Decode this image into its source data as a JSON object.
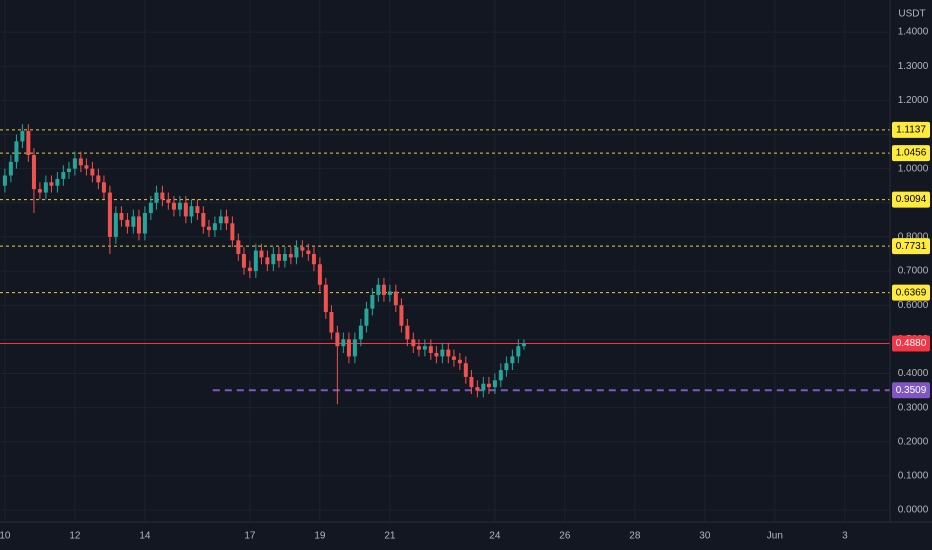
{
  "chart_data": {
    "type": "candlestick",
    "y_axis_label": "USDT",
    "up_color": "#26a69a",
    "down_color": "#ef5350",
    "grid": true,
    "x": [
      10,
      10.17,
      10.33,
      10.5,
      10.67,
      10.83,
      11,
      11.17,
      11.33,
      11.5,
      11.67,
      11.83,
      12,
      12.17,
      12.33,
      12.5,
      12.67,
      12.83,
      13,
      13.17,
      13.33,
      13.5,
      13.67,
      13.83,
      14,
      14.17,
      14.33,
      14.5,
      14.67,
      14.83,
      15,
      15.17,
      15.33,
      15.5,
      15.67,
      15.83,
      16,
      16.17,
      16.33,
      16.5,
      16.67,
      16.83,
      17,
      17.17,
      17.33,
      17.5,
      17.67,
      17.83,
      18,
      18.17,
      18.33,
      18.5,
      18.67,
      18.83,
      19,
      19.17,
      19.33,
      19.5,
      19.67,
      19.83,
      20,
      20.17,
      20.33,
      20.5,
      20.67,
      20.83,
      21,
      21.17,
      21.33,
      21.5,
      21.67,
      21.83,
      22,
      22.17,
      22.33,
      22.5,
      22.67,
      22.83,
      23,
      23.17,
      23.33,
      23.5,
      23.67,
      23.83,
      24,
      24.17,
      24.33,
      24.5,
      24.67,
      24.83
    ],
    "open": [
      0.95,
      0.98,
      1.02,
      1.08,
      1.11,
      1.04,
      0.94,
      0.93,
      0.96,
      0.95,
      0.97,
      0.99,
      1.0,
      1.03,
      1.01,
      1.0,
      0.98,
      0.96,
      0.93,
      0.8,
      0.87,
      0.85,
      0.83,
      0.86,
      0.81,
      0.87,
      0.9,
      0.93,
      0.91,
      0.9,
      0.88,
      0.9,
      0.86,
      0.89,
      0.87,
      0.83,
      0.82,
      0.84,
      0.86,
      0.84,
      0.79,
      0.75,
      0.71,
      0.7,
      0.76,
      0.74,
      0.72,
      0.75,
      0.73,
      0.75,
      0.74,
      0.77,
      0.76,
      0.75,
      0.72,
      0.66,
      0.58,
      0.52,
      0.48,
      0.5,
      0.45,
      0.5,
      0.54,
      0.59,
      0.63,
      0.66,
      0.63,
      0.64,
      0.6,
      0.54,
      0.5,
      0.48,
      0.47,
      0.48,
      0.46,
      0.45,
      0.47,
      0.45,
      0.44,
      0.43,
      0.39,
      0.36,
      0.35,
      0.37,
      0.36,
      0.38,
      0.41,
      0.43,
      0.45,
      0.48
    ],
    "high": [
      1.0,
      1.04,
      1.1,
      1.13,
      1.13,
      1.06,
      0.96,
      0.98,
      0.98,
      0.99,
      1.01,
      1.02,
      1.05,
      1.05,
      1.03,
      1.02,
      1.0,
      0.98,
      0.95,
      0.89,
      0.89,
      0.87,
      0.88,
      0.88,
      0.89,
      0.92,
      0.95,
      0.95,
      0.93,
      0.92,
      0.92,
      0.92,
      0.91,
      0.91,
      0.89,
      0.85,
      0.86,
      0.88,
      0.88,
      0.86,
      0.81,
      0.77,
      0.73,
      0.78,
      0.78,
      0.76,
      0.77,
      0.77,
      0.77,
      0.77,
      0.79,
      0.79,
      0.78,
      0.77,
      0.74,
      0.68,
      0.6,
      0.54,
      0.52,
      0.52,
      0.52,
      0.56,
      0.61,
      0.65,
      0.68,
      0.68,
      0.66,
      0.66,
      0.62,
      0.56,
      0.52,
      0.5,
      0.5,
      0.5,
      0.48,
      0.49,
      0.49,
      0.47,
      0.46,
      0.45,
      0.41,
      0.38,
      0.39,
      0.39,
      0.4,
      0.43,
      0.45,
      0.47,
      0.5,
      0.5
    ],
    "low": [
      0.93,
      0.96,
      1.0,
      1.06,
      1.02,
      0.87,
      0.91,
      0.91,
      0.93,
      0.93,
      0.95,
      0.97,
      0.98,
      0.99,
      0.98,
      0.96,
      0.94,
      0.91,
      0.75,
      0.78,
      0.83,
      0.81,
      0.81,
      0.79,
      0.79,
      0.85,
      0.88,
      0.89,
      0.88,
      0.86,
      0.86,
      0.84,
      0.84,
      0.85,
      0.81,
      0.8,
      0.8,
      0.82,
      0.82,
      0.77,
      0.73,
      0.69,
      0.68,
      0.68,
      0.72,
      0.7,
      0.7,
      0.71,
      0.71,
      0.72,
      0.72,
      0.74,
      0.73,
      0.7,
      0.64,
      0.56,
      0.5,
      0.31,
      0.46,
      0.43,
      0.43,
      0.48,
      0.52,
      0.57,
      0.61,
      0.61,
      0.61,
      0.58,
      0.52,
      0.48,
      0.46,
      0.45,
      0.45,
      0.44,
      0.43,
      0.43,
      0.43,
      0.42,
      0.41,
      0.37,
      0.34,
      0.33,
      0.33,
      0.34,
      0.34,
      0.36,
      0.39,
      0.41,
      0.43,
      0.47
    ],
    "close": [
      0.98,
      1.02,
      1.08,
      1.11,
      1.04,
      0.94,
      0.93,
      0.96,
      0.95,
      0.97,
      0.99,
      1.0,
      1.03,
      1.01,
      1.0,
      0.98,
      0.96,
      0.93,
      0.8,
      0.87,
      0.85,
      0.83,
      0.86,
      0.81,
      0.87,
      0.9,
      0.93,
      0.91,
      0.9,
      0.88,
      0.9,
      0.86,
      0.89,
      0.87,
      0.83,
      0.82,
      0.84,
      0.86,
      0.84,
      0.79,
      0.75,
      0.71,
      0.7,
      0.76,
      0.74,
      0.72,
      0.75,
      0.73,
      0.75,
      0.74,
      0.77,
      0.76,
      0.75,
      0.72,
      0.66,
      0.58,
      0.52,
      0.48,
      0.5,
      0.45,
      0.5,
      0.54,
      0.59,
      0.63,
      0.66,
      0.63,
      0.64,
      0.6,
      0.54,
      0.5,
      0.48,
      0.47,
      0.48,
      0.46,
      0.45,
      0.47,
      0.45,
      0.44,
      0.43,
      0.39,
      0.36,
      0.35,
      0.37,
      0.36,
      0.38,
      0.41,
      0.43,
      0.45,
      0.48,
      0.488
    ],
    "xlim": [
      9.86,
      35.29
    ],
    "xticks": [
      10,
      12,
      14,
      17,
      19,
      21,
      24,
      26,
      28,
      30,
      {
        "value": 32,
        "label": "Jun"
      },
      {
        "value": 34,
        "label": "3"
      }
    ],
    "ylim": [
      -0.035,
      1.494
    ],
    "yticks": [
      {
        "value": 0,
        "label": "0.0000"
      },
      {
        "value": 0.1,
        "label": "0.1000"
      },
      {
        "value": 0.2,
        "label": "0.2000"
      },
      {
        "value": 0.3,
        "label": "0.3000"
      },
      {
        "value": 0.4,
        "label": "0.4000"
      },
      {
        "value": 0.5,
        "label": "0.5000"
      },
      {
        "value": 0.6,
        "label": "0.6000"
      },
      {
        "value": 0.7,
        "label": "0.7000"
      },
      {
        "value": 0.8,
        "label": "0.8000"
      },
      {
        "value": 0.9,
        "label": "0.9000"
      },
      {
        "value": 1.0,
        "label": "1.0000"
      },
      {
        "value": 1.1,
        "label": "1.1000"
      },
      {
        "value": 1.2,
        "label": "1.2000"
      },
      {
        "value": 1.3,
        "label": "1.3000"
      },
      {
        "value": 1.4,
        "label": "1.4000"
      }
    ],
    "levels": [
      {
        "price": 1.1137,
        "color": "#e6d23c",
        "style": "dotted"
      },
      {
        "price": 1.0456,
        "color": "#e6d23c",
        "style": "dotted"
      },
      {
        "price": 0.9094,
        "color": "#e6d23c",
        "style": "dotted"
      },
      {
        "price": 0.7731,
        "color": "#e6d23c",
        "style": "dotted"
      },
      {
        "price": 0.6369,
        "color": "#e6d23c",
        "style": "dotted"
      },
      {
        "price": {
          "value": 0.488,
          "label": "0.4880"
        },
        "color": "#f23645",
        "style": "solid"
      },
      {
        "price": 0.3509,
        "color": "#7e57c2",
        "style": "dashed",
        "x_start": 15.94
      }
    ]
  }
}
